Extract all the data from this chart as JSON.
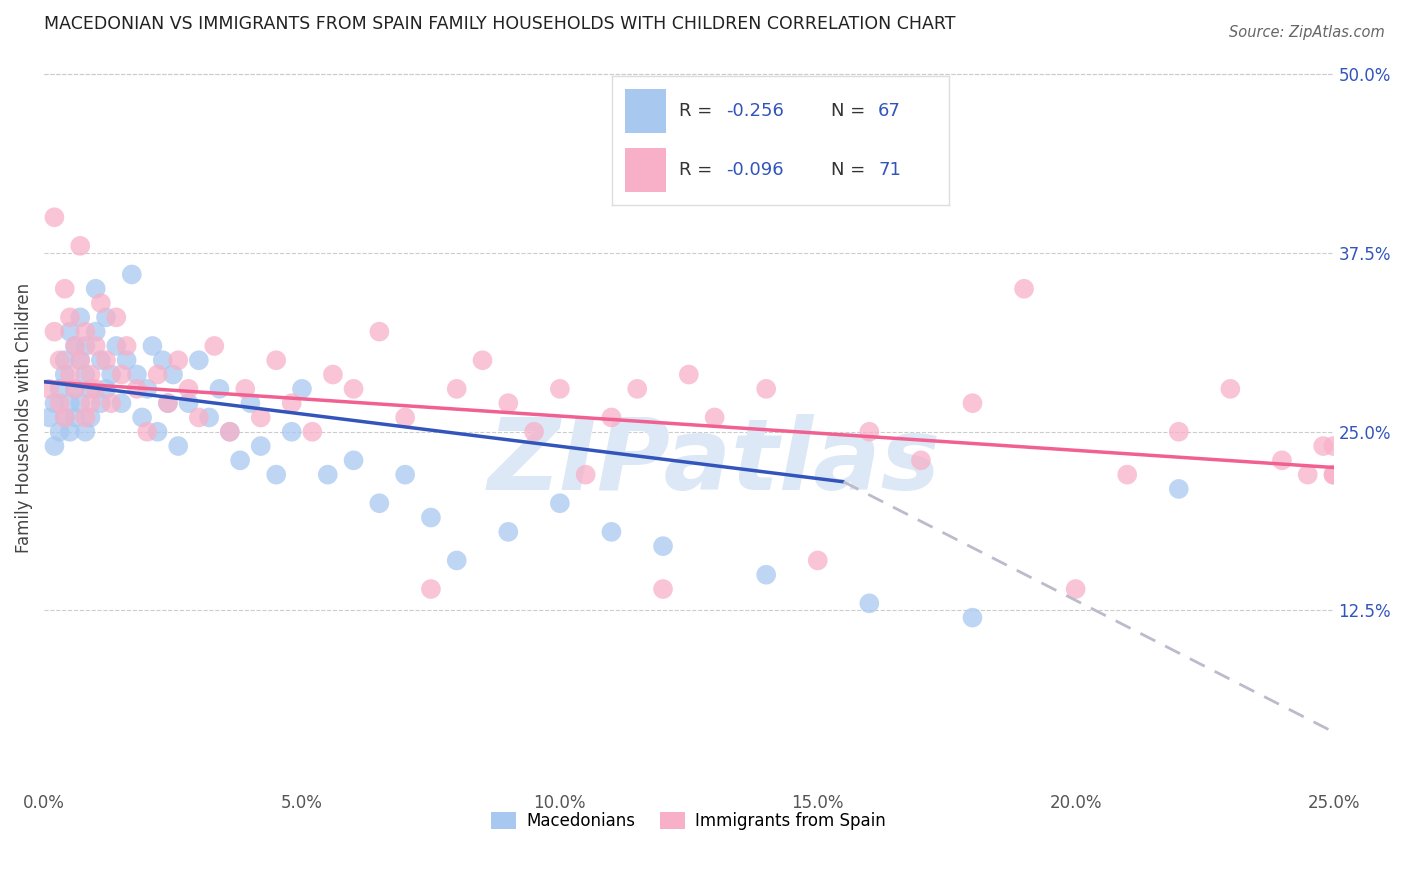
{
  "title": "MACEDONIAN VS IMMIGRANTS FROM SPAIN FAMILY HOUSEHOLDS WITH CHILDREN CORRELATION CHART",
  "source": "Source: ZipAtlas.com",
  "ylabel": "Family Households with Children",
  "xlim": [
    0.0,
    0.25
  ],
  "ylim": [
    0.0,
    0.52
  ],
  "macedonian_color": "#a8c8f0",
  "spain_color": "#f8b0c8",
  "macedonian_line_color": "#3355bb",
  "spain_line_color": "#f06090",
  "dashed_line_color": "#bbbbcc",
  "legend_label_macedonian": "Macedonians",
  "legend_label_spain": "Immigrants from Spain",
  "watermark": "ZIPatlas",
  "macedonian_R": -0.256,
  "macedonian_N": 67,
  "spain_R": -0.096,
  "spain_N": 71,
  "background_color": "#ffffff",
  "grid_color": "#cccccc",
  "mac_x": [
    0.001,
    0.002,
    0.002,
    0.003,
    0.003,
    0.004,
    0.004,
    0.004,
    0.005,
    0.005,
    0.005,
    0.006,
    0.006,
    0.006,
    0.007,
    0.007,
    0.007,
    0.008,
    0.008,
    0.008,
    0.009,
    0.009,
    0.01,
    0.01,
    0.011,
    0.011,
    0.012,
    0.012,
    0.013,
    0.014,
    0.015,
    0.016,
    0.017,
    0.018,
    0.019,
    0.02,
    0.021,
    0.022,
    0.023,
    0.024,
    0.025,
    0.026,
    0.028,
    0.03,
    0.032,
    0.034,
    0.036,
    0.038,
    0.04,
    0.042,
    0.045,
    0.048,
    0.05,
    0.055,
    0.06,
    0.065,
    0.07,
    0.075,
    0.08,
    0.09,
    0.1,
    0.11,
    0.12,
    0.14,
    0.16,
    0.18,
    0.22
  ],
  "mac_y": [
    0.26,
    0.24,
    0.27,
    0.25,
    0.28,
    0.3,
    0.26,
    0.29,
    0.27,
    0.25,
    0.32,
    0.28,
    0.31,
    0.26,
    0.3,
    0.27,
    0.33,
    0.29,
    0.25,
    0.31,
    0.28,
    0.26,
    0.32,
    0.35,
    0.3,
    0.27,
    0.33,
    0.28,
    0.29,
    0.31,
    0.27,
    0.3,
    0.36,
    0.29,
    0.26,
    0.28,
    0.31,
    0.25,
    0.3,
    0.27,
    0.29,
    0.24,
    0.27,
    0.3,
    0.26,
    0.28,
    0.25,
    0.23,
    0.27,
    0.24,
    0.22,
    0.25,
    0.28,
    0.22,
    0.23,
    0.2,
    0.22,
    0.19,
    0.16,
    0.18,
    0.2,
    0.18,
    0.17,
    0.15,
    0.13,
    0.12,
    0.21
  ],
  "sp_x": [
    0.001,
    0.002,
    0.002,
    0.003,
    0.003,
    0.004,
    0.004,
    0.005,
    0.005,
    0.006,
    0.006,
    0.007,
    0.007,
    0.008,
    0.008,
    0.009,
    0.009,
    0.01,
    0.01,
    0.011,
    0.012,
    0.013,
    0.014,
    0.015,
    0.016,
    0.018,
    0.02,
    0.022,
    0.024,
    0.026,
    0.028,
    0.03,
    0.033,
    0.036,
    0.039,
    0.042,
    0.045,
    0.048,
    0.052,
    0.056,
    0.06,
    0.065,
    0.07,
    0.075,
    0.08,
    0.085,
    0.09,
    0.095,
    0.1,
    0.105,
    0.11,
    0.115,
    0.12,
    0.125,
    0.13,
    0.14,
    0.15,
    0.16,
    0.17,
    0.18,
    0.19,
    0.2,
    0.21,
    0.22,
    0.23,
    0.24,
    0.245,
    0.248,
    0.25,
    0.25,
    0.25
  ],
  "sp_y": [
    0.28,
    0.32,
    0.4,
    0.27,
    0.3,
    0.26,
    0.35,
    0.29,
    0.33,
    0.31,
    0.28,
    0.38,
    0.3,
    0.26,
    0.32,
    0.29,
    0.27,
    0.31,
    0.28,
    0.34,
    0.3,
    0.27,
    0.33,
    0.29,
    0.31,
    0.28,
    0.25,
    0.29,
    0.27,
    0.3,
    0.28,
    0.26,
    0.31,
    0.25,
    0.28,
    0.26,
    0.3,
    0.27,
    0.25,
    0.29,
    0.28,
    0.32,
    0.26,
    0.14,
    0.28,
    0.3,
    0.27,
    0.25,
    0.28,
    0.22,
    0.26,
    0.28,
    0.14,
    0.29,
    0.26,
    0.28,
    0.16,
    0.25,
    0.23,
    0.27,
    0.35,
    0.14,
    0.22,
    0.25,
    0.28,
    0.23,
    0.22,
    0.24,
    0.22,
    0.24,
    0.22
  ]
}
